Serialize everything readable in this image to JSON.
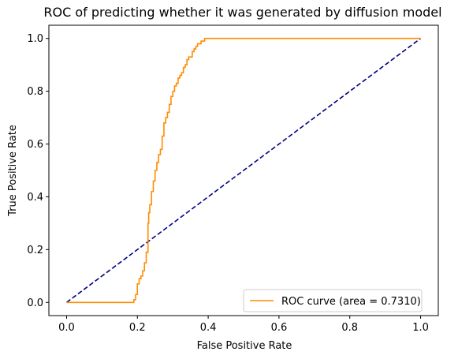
{
  "chart_data": {
    "type": "line",
    "title": "ROC of predicting whether it was generated by diffusion model",
    "xlabel": "False Positive Rate",
    "ylabel": "True Positive Rate",
    "xlim": [
      -0.05,
      1.05
    ],
    "ylim": [
      -0.05,
      1.05
    ],
    "xticks": [
      "0.0",
      "0.2",
      "0.4",
      "0.6",
      "0.8",
      "1.0"
    ],
    "yticks": [
      "0.0",
      "0.2",
      "0.4",
      "0.6",
      "0.8",
      "1.0"
    ],
    "xtick_values": [
      0,
      0.2,
      0.4,
      0.6,
      0.8,
      1.0
    ],
    "ytick_values": [
      0,
      0.2,
      0.4,
      0.6,
      0.8,
      1.0
    ],
    "grid": false,
    "legend_position": "lower-right",
    "series": [
      {
        "name": "ROC curve (area = 0.7310)",
        "color": "#ff8c00",
        "style": "solid",
        "x": [
          0.0,
          0.18,
          0.19,
          0.195,
          0.2,
          0.205,
          0.21,
          0.215,
          0.22,
          0.225,
          0.23,
          0.232,
          0.235,
          0.24,
          0.245,
          0.25,
          0.255,
          0.26,
          0.265,
          0.27,
          0.275,
          0.28,
          0.285,
          0.29,
          0.295,
          0.3,
          0.305,
          0.31,
          0.315,
          0.32,
          0.325,
          0.33,
          0.335,
          0.34,
          0.345,
          0.35,
          0.355,
          0.36,
          0.365,
          0.37,
          0.38,
          0.39,
          0.4,
          0.41,
          0.43,
          1.0
        ],
        "y": [
          0.0,
          0.0,
          0.01,
          0.03,
          0.07,
          0.09,
          0.1,
          0.12,
          0.15,
          0.19,
          0.3,
          0.34,
          0.37,
          0.42,
          0.46,
          0.5,
          0.53,
          0.56,
          0.58,
          0.63,
          0.68,
          0.7,
          0.72,
          0.75,
          0.78,
          0.8,
          0.82,
          0.83,
          0.85,
          0.86,
          0.87,
          0.89,
          0.9,
          0.92,
          0.93,
          0.93,
          0.95,
          0.96,
          0.97,
          0.98,
          0.99,
          1.0,
          1.0,
          1.0,
          1.0,
          1.0
        ]
      },
      {
        "name": "",
        "color": "#000080",
        "style": "dashed",
        "x": [
          0.0,
          1.0
        ],
        "y": [
          0.0,
          1.0
        ]
      }
    ]
  }
}
